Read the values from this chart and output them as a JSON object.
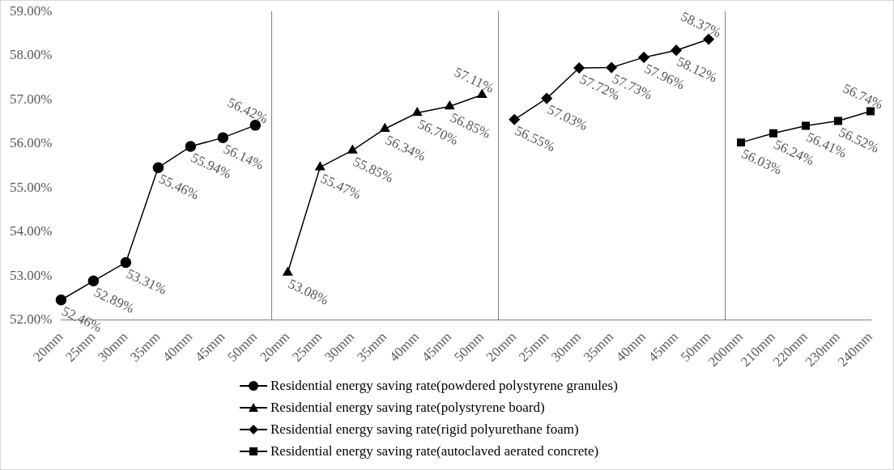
{
  "chart_data": {
    "type": "line",
    "categories": [
      "20mm",
      "25mm",
      "30mm",
      "35mm",
      "40mm",
      "45mm",
      "50mm",
      "20mm",
      "25mm",
      "30mm",
      "35mm",
      "40mm",
      "45mm",
      "50mm",
      "20mm",
      "25mm",
      "30mm",
      "35mm",
      "40mm",
      "45mm",
      "50mm",
      "200mm",
      "210mm",
      "220mm",
      "230mm",
      "240mm"
    ],
    "series": [
      {
        "name": "Residential energy saving rate(powdered polystyrene granules)",
        "color": "#000000",
        "marker": "circle",
        "values": [
          52.46,
          52.89,
          53.31,
          55.46,
          55.94,
          56.14,
          56.42,
          null,
          null,
          null,
          null,
          null,
          null,
          null,
          null,
          null,
          null,
          null,
          null,
          null,
          null,
          null,
          null,
          null,
          null,
          null
        ],
        "value_labels": [
          "52.46%",
          "52.89%",
          "53.31%",
          "55.46%",
          "55.94%",
          "56.14%",
          "56.42%",
          null,
          null,
          null,
          null,
          null,
          null,
          null,
          null,
          null,
          null,
          null,
          null,
          null,
          null,
          null,
          null,
          null,
          null,
          null
        ]
      },
      {
        "name": "Residential energy saving rate(polystyrene board)",
        "color": "#000000",
        "marker": "triangle",
        "values": [
          null,
          null,
          null,
          null,
          null,
          null,
          null,
          53.08,
          55.47,
          55.85,
          56.34,
          56.7,
          56.85,
          57.11,
          null,
          null,
          null,
          null,
          null,
          null,
          null,
          null,
          null,
          null,
          null,
          null
        ],
        "value_labels": [
          null,
          null,
          null,
          null,
          null,
          null,
          null,
          "53.08%",
          "55.47%",
          "55.85%",
          "56.34%",
          "56.70%",
          "56.85%",
          "57.11%",
          null,
          null,
          null,
          null,
          null,
          null,
          null,
          null,
          null,
          null,
          null,
          null
        ]
      },
      {
        "name": "Residential energy saving rate(rigid polyurethane foam)",
        "color": "#000000",
        "marker": "diamond",
        "values": [
          null,
          null,
          null,
          null,
          null,
          null,
          null,
          null,
          null,
          null,
          null,
          null,
          null,
          null,
          56.55,
          57.03,
          57.72,
          57.73,
          57.96,
          58.12,
          58.37,
          null,
          null,
          null,
          null,
          null
        ],
        "value_labels": [
          null,
          null,
          null,
          null,
          null,
          null,
          null,
          null,
          null,
          null,
          null,
          null,
          null,
          null,
          "56.55%",
          "57.03%",
          "57.72%",
          "57.73%",
          "57.96%",
          "58.12%",
          "58.37%",
          null,
          null,
          null,
          null,
          null
        ]
      },
      {
        "name": "Residential energy saving rate(autoclaved aerated concrete)",
        "color": "#000000",
        "marker": "square",
        "values": [
          null,
          null,
          null,
          null,
          null,
          null,
          null,
          null,
          null,
          null,
          null,
          null,
          null,
          null,
          null,
          null,
          null,
          null,
          null,
          null,
          null,
          56.03,
          56.24,
          56.41,
          56.52,
          56.74
        ],
        "value_labels": [
          null,
          null,
          null,
          null,
          null,
          null,
          null,
          null,
          null,
          null,
          null,
          null,
          null,
          null,
          null,
          null,
          null,
          null,
          null,
          null,
          null,
          "56.03%",
          "56.24%",
          "56.41%",
          "56.52%",
          "56.74%"
        ]
      }
    ],
    "ylim": [
      52,
      59
    ],
    "yticks": [
      {
        "value": 52,
        "label": "52.00%"
      },
      {
        "value": 53,
        "label": "53.00%"
      },
      {
        "value": 54,
        "label": "54.00%"
      },
      {
        "value": 55,
        "label": "55.00%"
      },
      {
        "value": 56,
        "label": "56.00%"
      },
      {
        "value": 57,
        "label": "57.00%"
      },
      {
        "value": 58,
        "label": "58.00%"
      },
      {
        "value": 59,
        "label": "59.00%"
      }
    ],
    "grid": false,
    "legend": "bottom"
  }
}
